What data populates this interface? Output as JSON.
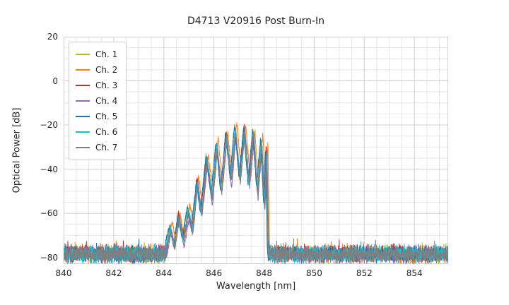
{
  "chart_data": {
    "type": "line",
    "title": "D4713 V20916 Post Burn-In",
    "xlabel": "Wavelength [nm]",
    "ylabel": "Optical Power [dB]",
    "xlim": [
      840,
      855.35
    ],
    "ylim": [
      -83,
      20
    ],
    "xticks": [
      840,
      842,
      844,
      846,
      848,
      850,
      852,
      854
    ],
    "yticks": [
      20,
      0,
      -20,
      -40,
      -60,
      -80
    ],
    "minor_step_x": 0.5,
    "minor_step_y": 5,
    "grid": true,
    "legend_position": "upper left",
    "noise_mean_db": -78.5,
    "peak_summary": {
      "peak_wavelength_nm": 847.2,
      "peak_power_db": -21,
      "noise_floor_db": -80,
      "signal_band_nm": [
        844.1,
        848.2
      ]
    },
    "envelope_keypoints": [
      [
        843.9,
        -110
      ],
      [
        844.12,
        -74
      ],
      [
        844.28,
        -66
      ],
      [
        844.42,
        -74
      ],
      [
        844.6,
        -61
      ],
      [
        844.78,
        -72
      ],
      [
        844.98,
        -59
      ],
      [
        845.14,
        -67
      ],
      [
        845.34,
        -45
      ],
      [
        845.5,
        -59
      ],
      [
        845.72,
        -35
      ],
      [
        845.92,
        -53
      ],
      [
        846.12,
        -28.5
      ],
      [
        846.3,
        -49
      ],
      [
        846.5,
        -24
      ],
      [
        846.68,
        -45
      ],
      [
        846.86,
        -21.5
      ],
      [
        847.04,
        -44
      ],
      [
        847.22,
        -21
      ],
      [
        847.4,
        -46
      ],
      [
        847.58,
        -23.5
      ],
      [
        847.74,
        -50
      ],
      [
        847.9,
        -26.5
      ],
      [
        848.02,
        -56
      ],
      [
        848.1,
        -29
      ],
      [
        848.16,
        -70
      ],
      [
        848.22,
        -110
      ]
    ],
    "series": [
      {
        "name": "Ch. 1",
        "color": "#bcbd22",
        "x_offset_nm": -0.03,
        "y_offset_db": 0.8
      },
      {
        "name": "Ch. 2",
        "color": "#ff7f0e",
        "x_offset_nm": 0.05,
        "y_offset_db": 1.8
      },
      {
        "name": "Ch. 3",
        "color": "#d62728",
        "x_offset_nm": -0.01,
        "y_offset_db": 0.2
      },
      {
        "name": "Ch. 4",
        "color": "#9467bd",
        "x_offset_nm": 0.02,
        "y_offset_db": -2.5
      },
      {
        "name": "Ch. 5",
        "color": "#1f77b4",
        "x_offset_nm": -0.04,
        "y_offset_db": 0.5
      },
      {
        "name": "Ch. 6",
        "color": "#17becf",
        "x_offset_nm": 0.0,
        "y_offset_db": -0.5
      },
      {
        "name": "Ch. 7",
        "color": "#7f7f7f",
        "x_offset_nm": 0.015,
        "y_offset_db": -1.2
      }
    ]
  }
}
